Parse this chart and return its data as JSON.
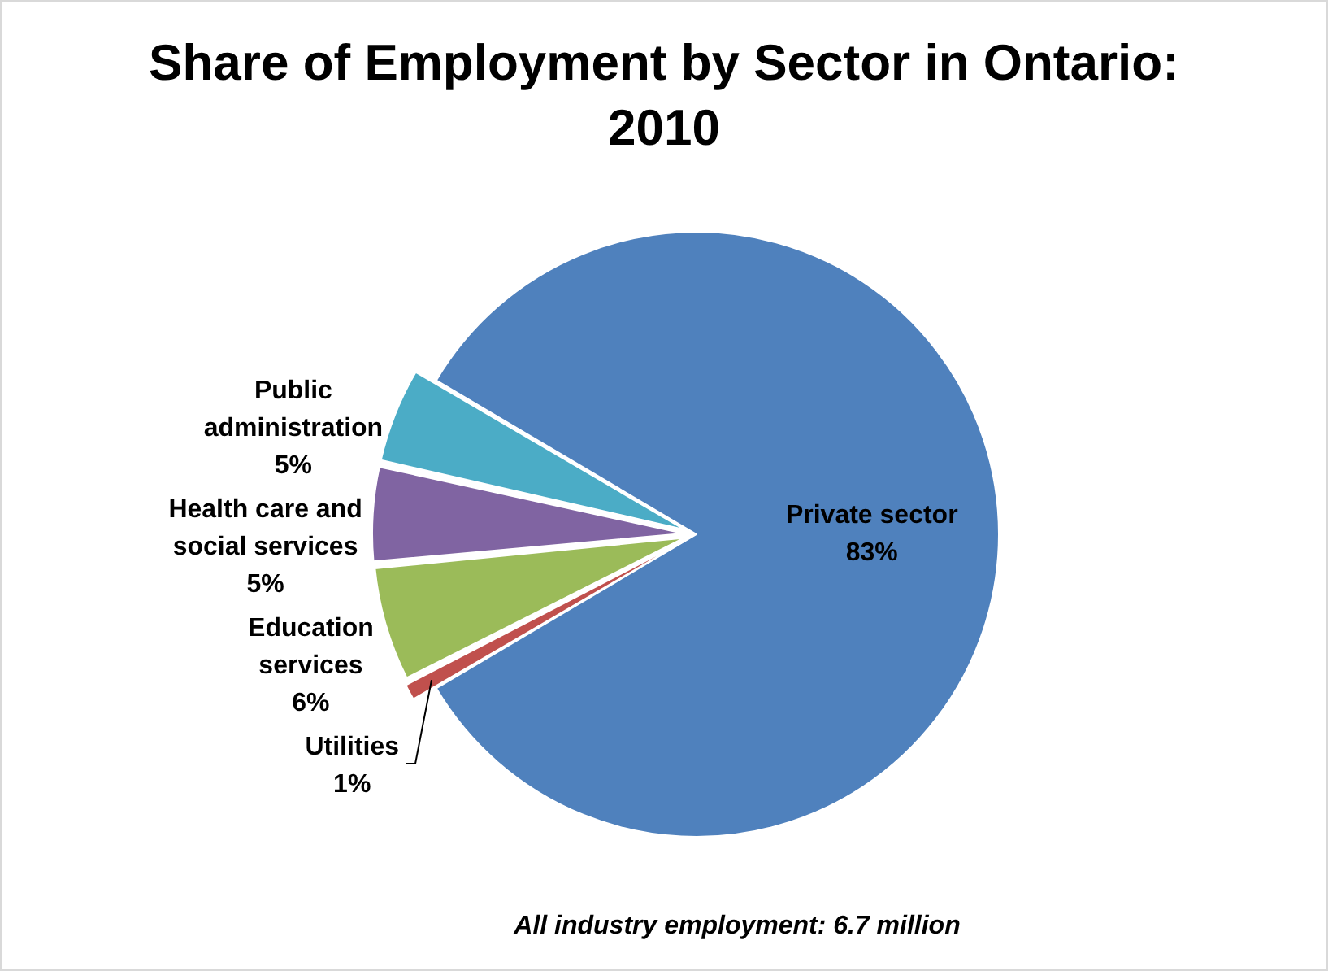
{
  "chart_data": {
    "type": "pie",
    "title": "Share of Employment by Sector in Ontario: 2010",
    "categories": [
      "Private sector",
      "Utilities",
      "Education services",
      "Health care and social services",
      "Public administration"
    ],
    "values": [
      83,
      1,
      6,
      5,
      5
    ],
    "colors": [
      "#4f81bd",
      "#c0504d",
      "#9bbb59",
      "#8064a2",
      "#4bacc6"
    ],
    "value_labels": [
      "83%",
      "1%",
      "6%",
      "5%",
      "5%"
    ],
    "annotations": [
      "All industry employment: 6.7 million"
    ],
    "legend": false
  }
}
